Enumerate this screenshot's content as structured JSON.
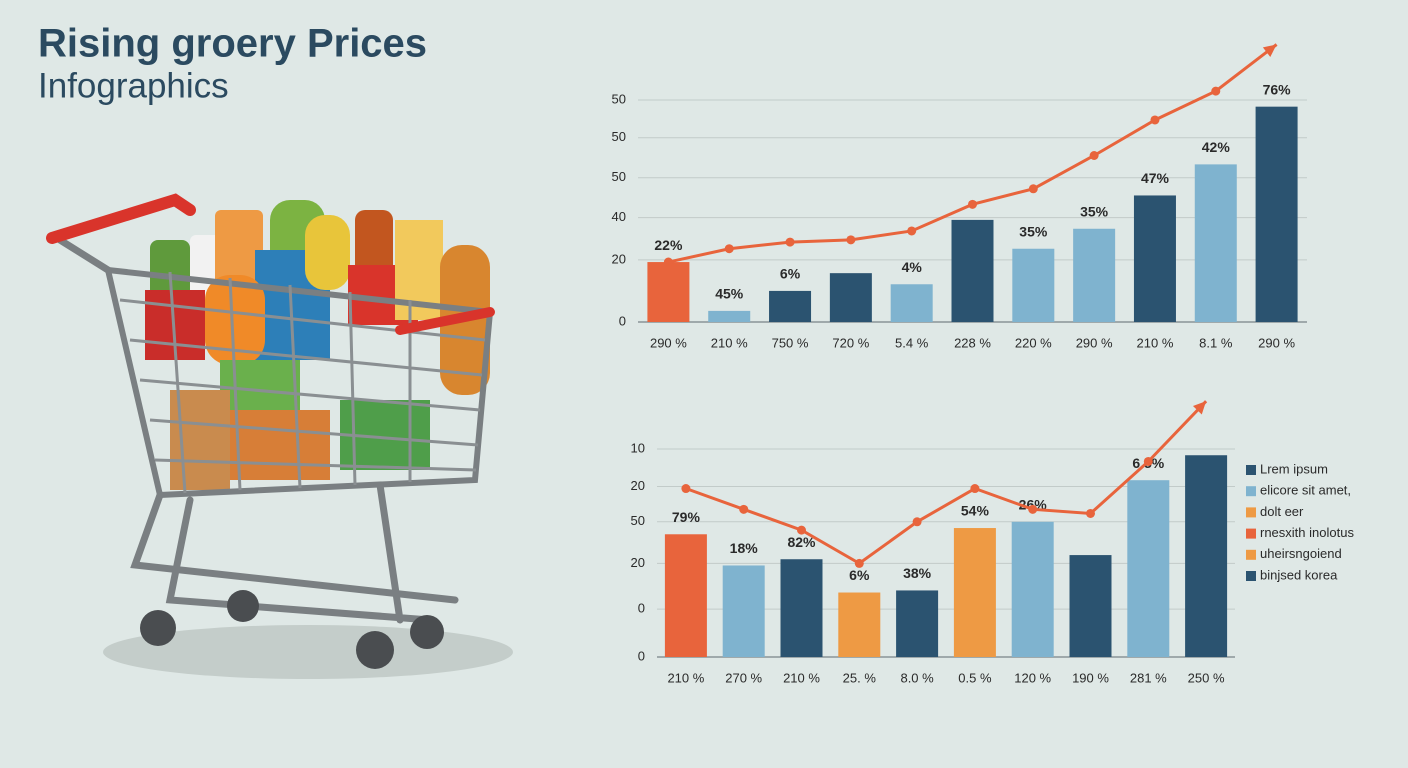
{
  "title": "Rising groery Prices",
  "subtitle": "Infographics",
  "chart_data": [
    {
      "type": "bar",
      "categories": [
        "290 %",
        "210 %",
        "750 %",
        "720 %",
        "5.4 %",
        "228 %",
        "220 %",
        "290 %",
        "210 %",
        "8.1 %",
        "290 %"
      ],
      "values": [
        27,
        5,
        14,
        22,
        17,
        46,
        33,
        42,
        57,
        71,
        97
      ],
      "bar_colors": [
        "#e8643c",
        "#7fb3cf",
        "#2b5370",
        "#2b5370",
        "#7fb3cf",
        "#2b5370",
        "#7fb3cf",
        "#7fb3cf",
        "#2b5370",
        "#7fb3cf",
        "#2b5370"
      ],
      "bar_labels": [
        "22%",
        "45%",
        "6%",
        null,
        "4%",
        null,
        "35%",
        "35%",
        "47%",
        "42%",
        "76%"
      ],
      "line_values": [
        27,
        33,
        36,
        37,
        41,
        53,
        60,
        75,
        91,
        104,
        125
      ],
      "line_color": "#e8643c",
      "ylim": [
        0,
        100
      ],
      "yticks": [
        {
          "value": 100,
          "label": "50"
        },
        {
          "value": 83,
          "label": "50"
        },
        {
          "value": 65,
          "label": "50"
        },
        {
          "value": 47,
          "label": "40"
        },
        {
          "value": 28,
          "label": "20"
        },
        0
      ],
      "grid": true
    },
    {
      "type": "bar",
      "categories": [
        "210 %",
        "270 %",
        "210 %",
        "25. %",
        "8.0 %",
        "0.5 %",
        "120 %",
        "190 %",
        "281 %",
        "250 %"
      ],
      "values": [
        59,
        44,
        47,
        31,
        32,
        62,
        65,
        49,
        85,
        97
      ],
      "bar_colors": [
        "#e8643c",
        "#7fb3cf",
        "#2b5370",
        "#ee9a44",
        "#2b5370",
        "#ee9a44",
        "#7fb3cf",
        "#2b5370",
        "#7fb3cf",
        "#2b5370"
      ],
      "bar_labels": [
        "79%",
        "18%",
        "82%",
        "6%",
        "38%",
        "54%",
        "26%",
        null,
        "6.5%",
        null
      ],
      "line_values": [
        81,
        71,
        61,
        45,
        65,
        81,
        71,
        69,
        94,
        123
      ],
      "line_color": "#e8643c",
      "ylim": [
        0,
        100
      ],
      "yticks": [
        {
          "value": 100,
          "label": "10"
        },
        {
          "value": 82,
          "label": "20"
        },
        {
          "value": 65,
          "label": "50"
        },
        {
          "value": 45,
          "label": "20"
        },
        {
          "value": 23,
          "label": "0"
        },
        0
      ],
      "grid": true,
      "legend": [
        {
          "label": "Lrem ipsum",
          "color": "#2b5370"
        },
        {
          "label": "elicore sit amet,",
          "color": "#7fb3cf"
        },
        {
          "label": "dolt eer",
          "color": "#ee9a44"
        },
        {
          "label": "rnesxith inolotus",
          "color": "#e8643c"
        },
        {
          "label": "uheirsngoiend",
          "color": "#ee9a44"
        },
        {
          "label": "binjsed korea",
          "color": "#2b5370"
        }
      ]
    }
  ]
}
